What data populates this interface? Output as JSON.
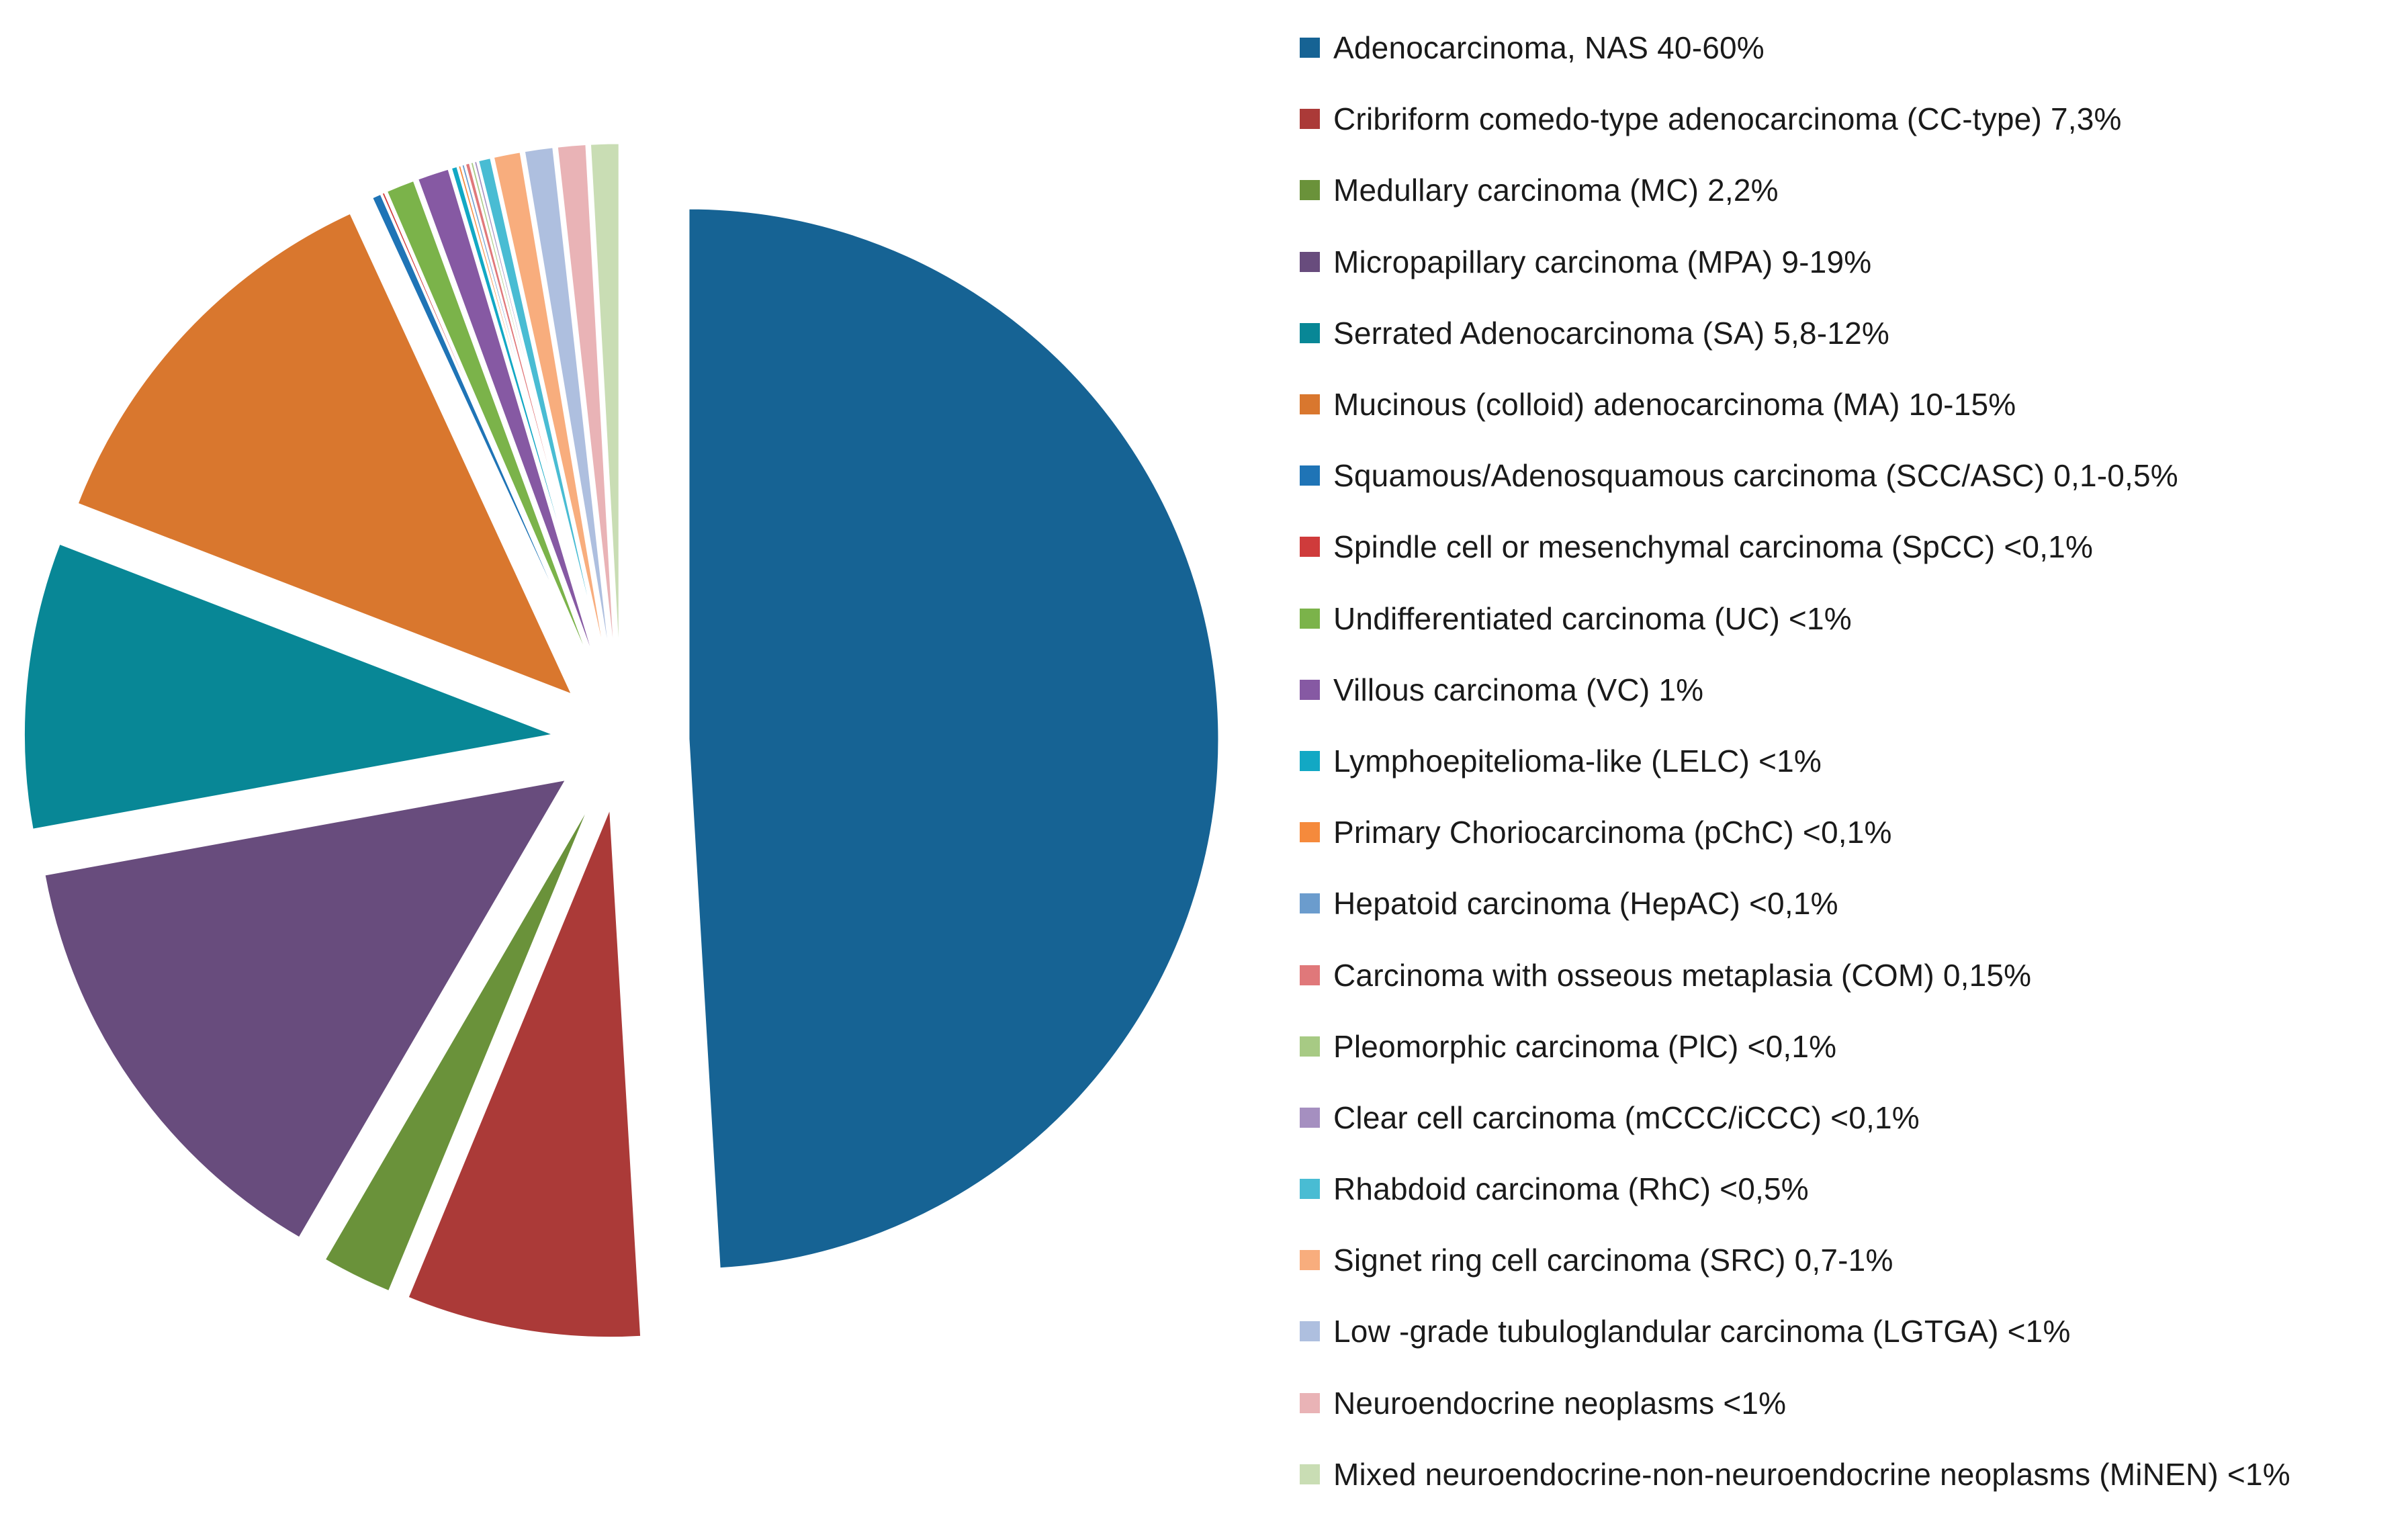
{
  "chart_data": {
    "type": "pie",
    "title": "",
    "legend_position": "right",
    "exploded": true,
    "slices": [
      {
        "label": "Adenocarcinoma, NAS 40-60%",
        "value": 50.0,
        "color": "#166394"
      },
      {
        "label": "Cribriform comedo-type adenocarcinoma (CC-type) 7,3%",
        "value": 7.3,
        "color": "#ab3a38"
      },
      {
        "label": "Medullary carcinoma (MC) 2,2%",
        "value": 2.2,
        "color": "#6a923a"
      },
      {
        "label": "Micropapillary carcinoma (MPA) 9-19%",
        "value": 14.0,
        "color": "#684c7d"
      },
      {
        "label": "Serrated Adenocarcinoma (SA) 5,8-12%",
        "value": 8.9,
        "color": "#088796"
      },
      {
        "label": "Mucinous (colloid) adenocarcinoma (MA) 10-15%",
        "value": 12.5,
        "color": "#d9772e"
      },
      {
        "label": "Squamous/Adenosquamous carcinoma (SCC/ASC) 0,1-0,5%",
        "value": 0.3,
        "color": "#1f74b6"
      },
      {
        "label": "Spindle cell or mesenchymal carcinoma (SpCC) <0,1%",
        "value": 0.1,
        "color": "#cf3b3b"
      },
      {
        "label": "Undifferentiated carcinoma (UC) <1%",
        "value": 0.9,
        "color": "#7bb34a"
      },
      {
        "label": "Villous carcinoma (VC) 1%",
        "value": 1.0,
        "color": "#8659a3"
      },
      {
        "label": "Lymphoepitelioma-like (LELC) <1%",
        "value": 0.2,
        "color": "#12a8c4"
      },
      {
        "label": "Primary Choriocarcinoma (pChC) <0,1%",
        "value": 0.1,
        "color": "#f58a3c"
      },
      {
        "label": "Hepatoid carcinoma (HepAC) <0,1%",
        "value": 0.1,
        "color": "#6b9ccd"
      },
      {
        "label": "Carcinoma with osseous  metaplasia (COM) 0,15%",
        "value": 0.15,
        "color": "#e0787a"
      },
      {
        "label": "Pleomorphic carcinoma (PlC) <0,1%",
        "value": 0.1,
        "color": "#a7ca84"
      },
      {
        "label": "Clear cell carcinoma (mCCC/iCCC) <0,1%",
        "value": 0.1,
        "color": "#a58fc0"
      },
      {
        "label": "Rhabdoid carcinoma (RhC) <0,5%",
        "value": 0.4,
        "color": "#49bcd3"
      },
      {
        "label": "Signet ring cell carcinoma (SRC) 0,7-1%",
        "value": 0.85,
        "color": "#f8ad7d"
      },
      {
        "label": "Low -grade tubuloglandular carcinoma (LGTGA) <1%",
        "value": 0.9,
        "color": "#aebfdf"
      },
      {
        "label": "Neuroendocrine neoplasms  <1%",
        "value": 0.9,
        "color": "#e9b3b6"
      },
      {
        "label": "Mixed neuroendocrine-non-neuroendocrine neoplasms (MiNEN) <1%",
        "value": 0.9,
        "color": "#c9ddb4"
      }
    ]
  }
}
